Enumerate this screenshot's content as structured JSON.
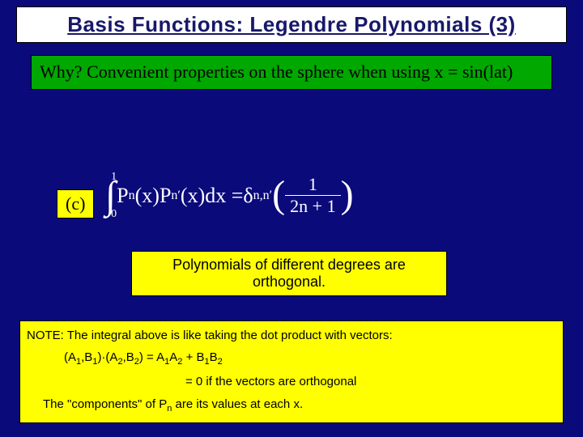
{
  "title": "Basis Functions:  Legendre Polynomials (3)",
  "why": "Why?  Convenient properties on the sphere when using x = sin(lat)",
  "c_label": "(c)",
  "formula": {
    "int_upper": "1",
    "int_lower": "0",
    "p1": "P",
    "p1_sub": "n",
    "x1": "(x)",
    "p2": "P",
    "p2_sub": "n′",
    "x2": "(x)dx = ",
    "delta": "δ",
    "delta_sub": "n,n′",
    "frac_num": "1",
    "frac_den": "2n + 1"
  },
  "ortho": "Polynomials of different degrees are orthogonal.",
  "note": {
    "line1": "NOTE:  The integral above is like taking the dot product with vectors:",
    "line2_prefix": "(A",
    "s1": "1",
    "line2_b": ",B",
    "s2": "1",
    "line2_dot": ")·(A",
    "s3": "2",
    "line2_b2": ",B",
    "s4": "2",
    "line2_eq": ") = A",
    "s5": "1",
    "line2_a2": "A",
    "s6": "2",
    "line2_plus": " + B",
    "s7": "1",
    "line2_b3": "B",
    "s8": "2",
    "line3": "= 0 if the vectors are orthogonal",
    "line4_a": "The \"components\" of P",
    "line4_sub": "n",
    "line4_b": " are its values at each x."
  },
  "colors": {
    "background": "#0a0a7a",
    "title_bg": "#ffffff",
    "title_text": "#18186a",
    "why_bg": "#00a800",
    "yellow": "#ffff00",
    "formula_text": "#ffffff",
    "border": "#000000"
  }
}
